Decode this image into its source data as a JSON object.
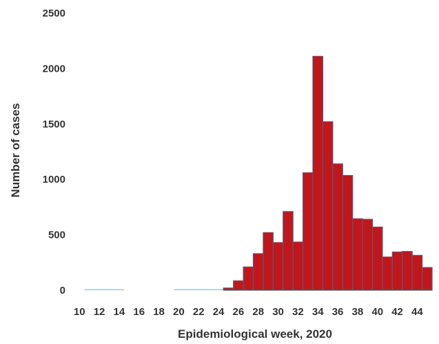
{
  "chart_data": {
    "type": "bar",
    "xlabel": "Epidemiological week, 2020",
    "ylabel": "Number of cases",
    "ylim": [
      0,
      2500
    ],
    "yticks": [
      0,
      500,
      1000,
      1500,
      2000,
      2500
    ],
    "xtick_labels": [
      "10",
      "12",
      "14",
      "16",
      "18",
      "20",
      "22",
      "24",
      "26",
      "28",
      "30",
      "32",
      "34",
      "36",
      "38",
      "40",
      "42",
      "44"
    ],
    "weeks": [
      10,
      11,
      12,
      13,
      14,
      15,
      16,
      17,
      18,
      19,
      20,
      21,
      22,
      23,
      24,
      25,
      26,
      27,
      28,
      29,
      30,
      31,
      32,
      33,
      34,
      35,
      36,
      37,
      38,
      39,
      40,
      41,
      42,
      43,
      44,
      45
    ],
    "values": [
      0,
      2,
      3,
      8,
      1,
      0,
      0,
      0,
      0,
      0,
      2,
      5,
      3,
      5,
      4,
      20,
      85,
      210,
      330,
      520,
      430,
      710,
      435,
      1060,
      2110,
      1520,
      1140,
      1035,
      645,
      640,
      570,
      300,
      345,
      350,
      315,
      205
    ],
    "colors": {
      "bar_fill": "#c1161c",
      "bar_stroke": "#4f5f78",
      "small_bar": "#9cc4e0",
      "grid": false
    }
  }
}
